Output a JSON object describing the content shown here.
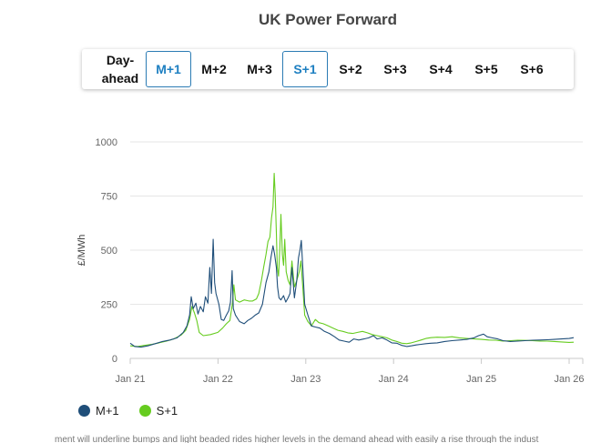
{
  "title": "UK Power Forward",
  "tabs": [
    {
      "label": "Day-ahead",
      "active": false
    },
    {
      "label": "M+1",
      "active": true
    },
    {
      "label": "M+2",
      "active": false
    },
    {
      "label": "M+3",
      "active": false
    },
    {
      "label": "S+1",
      "active": true
    },
    {
      "label": "S+2",
      "active": false
    },
    {
      "label": "S+3",
      "active": false
    },
    {
      "label": "S+4",
      "active": false
    },
    {
      "label": "S+5",
      "active": false
    },
    {
      "label": "S+6",
      "active": false
    }
  ],
  "colors": {
    "M+1": "#1f4e79",
    "S+1": "#66cc1f",
    "accent": "#1d7fc1",
    "grid": "#e6e6e6"
  },
  "chart_data": {
    "type": "line",
    "ylabel": "£/MWh",
    "xlabel": "",
    "ylim": [
      0,
      1000
    ],
    "yticks": [
      "0",
      "250",
      "500",
      "750",
      "1000"
    ],
    "xticks": [
      "Jan 21",
      "Jan 22",
      "Jan 23",
      "Jan 24",
      "Jan 25",
      "Jan 26"
    ],
    "grid": true,
    "legend": "bottom-left",
    "series": [
      {
        "name": "M+1",
        "color": "#1f4e79",
        "points": [
          [
            "2021-01-01",
            70
          ],
          [
            "2021-01-20",
            55
          ],
          [
            "2021-02-15",
            52
          ],
          [
            "2021-03-15",
            58
          ],
          [
            "2021-04-15",
            68
          ],
          [
            "2021-05-15",
            78
          ],
          [
            "2021-06-15",
            85
          ],
          [
            "2021-07-15",
            95
          ],
          [
            "2021-08-10",
            120
          ],
          [
            "2021-08-25",
            150
          ],
          [
            "2021-09-05",
            200
          ],
          [
            "2021-09-12",
            285
          ],
          [
            "2021-09-20",
            230
          ],
          [
            "2021-10-01",
            255
          ],
          [
            "2021-10-10",
            205
          ],
          [
            "2021-10-20",
            240
          ],
          [
            "2021-11-01",
            215
          ],
          [
            "2021-11-10",
            285
          ],
          [
            "2021-11-20",
            255
          ],
          [
            "2021-11-28",
            420
          ],
          [
            "2021-12-05",
            300
          ],
          [
            "2021-12-12",
            550
          ],
          [
            "2021-12-18",
            350
          ],
          [
            "2021-12-24",
            300
          ],
          [
            "2022-01-05",
            250
          ],
          [
            "2022-01-15",
            180
          ],
          [
            "2022-01-25",
            175
          ],
          [
            "2022-02-05",
            200
          ],
          [
            "2022-02-15",
            220
          ],
          [
            "2022-02-22",
            260
          ],
          [
            "2022-03-01",
            405
          ],
          [
            "2022-03-06",
            230
          ],
          [
            "2022-03-15",
            200
          ],
          [
            "2022-04-01",
            170
          ],
          [
            "2022-04-20",
            160
          ],
          [
            "2022-05-05",
            175
          ],
          [
            "2022-05-20",
            185
          ],
          [
            "2022-06-05",
            200
          ],
          [
            "2022-06-20",
            210
          ],
          [
            "2022-07-05",
            250
          ],
          [
            "2022-07-20",
            350
          ],
          [
            "2022-08-01",
            400
          ],
          [
            "2022-08-10",
            470
          ],
          [
            "2022-08-18",
            520
          ],
          [
            "2022-08-25",
            480
          ],
          [
            "2022-09-01",
            420
          ],
          [
            "2022-09-06",
            330
          ],
          [
            "2022-09-12",
            280
          ],
          [
            "2022-09-20",
            270
          ],
          [
            "2022-10-01",
            290
          ],
          [
            "2022-10-10",
            260
          ],
          [
            "2022-10-20",
            280
          ],
          [
            "2022-10-28",
            300
          ],
          [
            "2022-11-05",
            420
          ],
          [
            "2022-11-15",
            280
          ],
          [
            "2022-11-25",
            360
          ],
          [
            "2022-12-02",
            465
          ],
          [
            "2022-12-08",
            500
          ],
          [
            "2022-12-14",
            545
          ],
          [
            "2022-12-20",
            420
          ],
          [
            "2022-12-28",
            250
          ],
          [
            "2023-01-10",
            200
          ],
          [
            "2023-01-25",
            150
          ],
          [
            "2023-02-10",
            145
          ],
          [
            "2023-03-01",
            140
          ],
          [
            "2023-03-20",
            125
          ],
          [
            "2023-04-10",
            115
          ],
          [
            "2023-05-01",
            100
          ],
          [
            "2023-05-20",
            85
          ],
          [
            "2023-06-10",
            80
          ],
          [
            "2023-07-01",
            75
          ],
          [
            "2023-07-20",
            90
          ],
          [
            "2023-08-10",
            85
          ],
          [
            "2023-09-01",
            90
          ],
          [
            "2023-09-20",
            95
          ],
          [
            "2023-10-10",
            105
          ],
          [
            "2023-10-25",
            90
          ],
          [
            "2023-11-15",
            95
          ],
          [
            "2023-12-05",
            85
          ],
          [
            "2023-12-25",
            72
          ],
          [
            "2024-01-15",
            70
          ],
          [
            "2024-02-05",
            60
          ],
          [
            "2024-02-25",
            55
          ],
          [
            "2024-03-15",
            58
          ],
          [
            "2024-04-05",
            62
          ],
          [
            "2024-04-25",
            65
          ],
          [
            "2024-05-15",
            68
          ],
          [
            "2024-06-05",
            70
          ],
          [
            "2024-07-01",
            72
          ],
          [
            "2024-08-01",
            78
          ],
          [
            "2024-09-01",
            82
          ],
          [
            "2024-10-01",
            85
          ],
          [
            "2024-11-01",
            88
          ],
          [
            "2024-12-01",
            95
          ],
          [
            "2024-12-20",
            105
          ],
          [
            "2025-01-10",
            112
          ],
          [
            "2025-01-25",
            100
          ],
          [
            "2025-02-15",
            95
          ],
          [
            "2025-03-10",
            90
          ],
          [
            "2025-04-01",
            82
          ],
          [
            "2025-05-01",
            78
          ],
          [
            "2025-06-01",
            80
          ],
          [
            "2025-07-01",
            82
          ],
          [
            "2025-08-01",
            84
          ],
          [
            "2025-09-01",
            85
          ],
          [
            "2025-10-01",
            86
          ],
          [
            "2025-11-01",
            88
          ],
          [
            "2025-12-01",
            90
          ],
          [
            "2026-01-01",
            92
          ],
          [
            "2026-01-20",
            96
          ]
        ]
      },
      {
        "name": "S+1",
        "color": "#66cc1f",
        "points": [
          [
            "2021-01-01",
            58
          ],
          [
            "2021-02-01",
            55
          ],
          [
            "2021-03-01",
            60
          ],
          [
            "2021-04-01",
            65
          ],
          [
            "2021-05-01",
            72
          ],
          [
            "2021-06-01",
            80
          ],
          [
            "2021-07-01",
            90
          ],
          [
            "2021-08-01",
            108
          ],
          [
            "2021-08-20",
            130
          ],
          [
            "2021-09-05",
            180
          ],
          [
            "2021-09-15",
            240
          ],
          [
            "2021-09-25",
            210
          ],
          [
            "2021-10-05",
            175
          ],
          [
            "2021-10-15",
            120
          ],
          [
            "2021-11-01",
            105
          ],
          [
            "2021-12-01",
            110
          ],
          [
            "2022-01-01",
            120
          ],
          [
            "2022-01-20",
            140
          ],
          [
            "2022-02-05",
            160
          ],
          [
            "2022-02-20",
            175
          ],
          [
            "2022-03-03",
            260
          ],
          [
            "2022-03-08",
            340
          ],
          [
            "2022-03-15",
            270
          ],
          [
            "2022-04-01",
            260
          ],
          [
            "2022-04-20",
            270
          ],
          [
            "2022-05-10",
            265
          ],
          [
            "2022-05-25",
            265
          ],
          [
            "2022-06-10",
            275
          ],
          [
            "2022-06-20",
            300
          ],
          [
            "2022-07-01",
            360
          ],
          [
            "2022-07-10",
            420
          ],
          [
            "2022-07-20",
            480
          ],
          [
            "2022-07-28",
            540
          ],
          [
            "2022-08-05",
            560
          ],
          [
            "2022-08-12",
            650
          ],
          [
            "2022-08-18",
            700
          ],
          [
            "2022-08-23",
            855
          ],
          [
            "2022-08-27",
            760
          ],
          [
            "2022-09-01",
            580
          ],
          [
            "2022-09-05",
            420
          ],
          [
            "2022-09-10",
            380
          ],
          [
            "2022-09-15",
            500
          ],
          [
            "2022-09-20",
            665
          ],
          [
            "2022-09-26",
            480
          ],
          [
            "2022-10-01",
            430
          ],
          [
            "2022-10-06",
            550
          ],
          [
            "2022-10-12",
            400
          ],
          [
            "2022-10-20",
            360
          ],
          [
            "2022-10-28",
            340
          ],
          [
            "2022-11-05",
            450
          ],
          [
            "2022-11-15",
            330
          ],
          [
            "2022-11-25",
            360
          ],
          [
            "2022-12-05",
            400
          ],
          [
            "2022-12-12",
            450
          ],
          [
            "2022-12-20",
            330
          ],
          [
            "2022-12-28",
            200
          ],
          [
            "2023-01-10",
            170
          ],
          [
            "2023-01-25",
            150
          ],
          [
            "2023-02-10",
            180
          ],
          [
            "2023-02-25",
            165
          ],
          [
            "2023-03-15",
            160
          ],
          [
            "2023-04-05",
            150
          ],
          [
            "2023-04-25",
            140
          ],
          [
            "2023-05-15",
            130
          ],
          [
            "2023-06-05",
            125
          ],
          [
            "2023-06-25",
            118
          ],
          [
            "2023-07-15",
            115
          ],
          [
            "2023-08-05",
            120
          ],
          [
            "2023-08-25",
            125
          ],
          [
            "2023-09-15",
            118
          ],
          [
            "2023-10-05",
            110
          ],
          [
            "2023-10-25",
            105
          ],
          [
            "2023-11-15",
            100
          ],
          [
            "2023-12-05",
            95
          ],
          [
            "2023-12-25",
            85
          ],
          [
            "2024-01-15",
            78
          ],
          [
            "2024-02-05",
            70
          ],
          [
            "2024-02-25",
            68
          ],
          [
            "2024-03-15",
            72
          ],
          [
            "2024-04-05",
            78
          ],
          [
            "2024-04-25",
            85
          ],
          [
            "2024-05-15",
            92
          ],
          [
            "2024-06-05",
            96
          ],
          [
            "2024-07-01",
            98
          ],
          [
            "2024-08-01",
            97
          ],
          [
            "2024-09-01",
            100
          ],
          [
            "2024-10-01",
            95
          ],
          [
            "2024-11-01",
            92
          ],
          [
            "2024-12-01",
            90
          ],
          [
            "2025-01-01",
            88
          ],
          [
            "2025-02-01",
            85
          ],
          [
            "2025-03-01",
            84
          ],
          [
            "2025-04-01",
            80
          ],
          [
            "2025-05-01",
            82
          ],
          [
            "2025-06-01",
            84
          ],
          [
            "2025-07-01",
            83
          ],
          [
            "2025-08-01",
            82
          ],
          [
            "2025-09-01",
            80
          ],
          [
            "2025-10-01",
            80
          ],
          [
            "2025-11-01",
            78
          ],
          [
            "2025-12-01",
            76
          ],
          [
            "2026-01-01",
            74
          ],
          [
            "2026-01-20",
            75
          ]
        ]
      }
    ]
  },
  "footer": "ment will underline bumps and light beaded rides higher levels in the demand ahead with easily a rise through the indust"
}
